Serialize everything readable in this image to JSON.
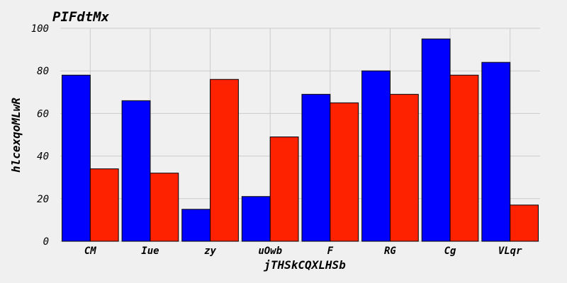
{
  "chart_data": {
    "type": "bar",
    "title": "PIFdtMx",
    "xlabel": "jTHSkCQXLHSb",
    "ylabel": "hlcexqoMLwR",
    "categories": [
      "CM",
      "Iue",
      "zy",
      "uOwb",
      "F",
      "RG",
      "Cg",
      "VLqr"
    ],
    "series": [
      {
        "values": [
          78,
          66,
          15,
          21,
          69,
          80,
          95,
          84
        ],
        "color": "#0000ff"
      },
      {
        "values": [
          34,
          32,
          76,
          49,
          65,
          69,
          78,
          17
        ],
        "color": "#ff2200"
      }
    ],
    "ylim": [
      0,
      100
    ],
    "yticks": [
      0,
      20,
      40,
      60,
      80,
      100
    ],
    "grid": true,
    "legend": "none",
    "background": "#f0f0f0"
  }
}
